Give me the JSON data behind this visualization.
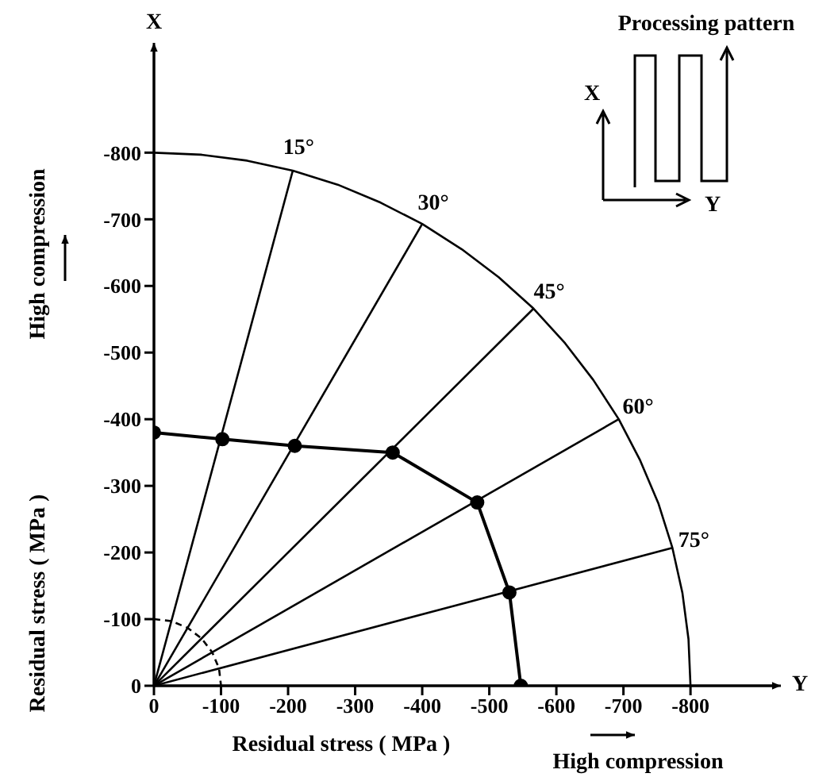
{
  "chart_data": {
    "type": "line",
    "xlabel": "Residual stress ( MPa )",
    "ylabel": "Residual stress ( MPa )",
    "xlim": [
      0,
      -930
    ],
    "ylim": [
      0,
      -960
    ],
    "xticks": [
      0,
      -100,
      -200,
      -300,
      -400,
      -500,
      -600,
      -700,
      -800
    ],
    "yticks": [
      0,
      -100,
      -200,
      -300,
      -400,
      -500,
      -600,
      -700,
      -800
    ],
    "series": [
      {
        "color": "#000000",
        "marker": "none",
        "line_style": "solid",
        "x": [
          0,
          -207
        ],
        "values": [
          0,
          -773
        ]
      },
      {
        "color": "#000000",
        "marker": "none",
        "line_style": "solid",
        "x": [
          0,
          -400
        ],
        "values": [
          0,
          -693
        ]
      },
      {
        "color": "#000000",
        "marker": "none",
        "line_style": "solid",
        "x": [
          0,
          -566
        ],
        "values": [
          0,
          -566
        ]
      },
      {
        "color": "#000000",
        "marker": "none",
        "line_style": "solid",
        "x": [
          0,
          -693
        ],
        "values": [
          0,
          -400
        ]
      },
      {
        "color": "#000000",
        "marker": "none",
        "line_style": "solid",
        "x": [
          0,
          -773
        ],
        "values": [
          0,
          -207
        ]
      },
      {
        "color": "#000000",
        "marker": "none",
        "line_style": "solid",
        "x": [
          0,
          -70,
          -139,
          -207,
          -274,
          -338,
          -400,
          -459,
          -514,
          -566,
          -613,
          -655,
          -693,
          -725,
          -752,
          -773,
          -788,
          -797,
          -800
        ],
        "values": [
          -800,
          -797,
          -788,
          -773,
          -752,
          -725,
          -693,
          -655,
          -613,
          -566,
          -514,
          -459,
          -400,
          -338,
          -274,
          -207,
          -139,
          -70,
          0
        ]
      },
      {
        "color": "#000000",
        "marker": "none",
        "line_style": "dashed",
        "x": [
          0,
          -26,
          -50,
          -71,
          -87,
          -97,
          -100
        ],
        "values": [
          -100,
          -97,
          -87,
          -71,
          -50,
          -26,
          0
        ]
      },
      {
        "color": "#000000",
        "marker": "circle",
        "line_style": "solid",
        "x": [
          0,
          -102,
          -210,
          -356,
          -482,
          -530,
          -547
        ],
        "values": [
          -380,
          -370,
          -360,
          -350,
          -275,
          -140,
          0
        ]
      }
    ],
    "annotations": [
      {
        "text": "X",
        "x": 0,
        "y": -960
      },
      {
        "text": "Y",
        "x": -930,
        "y": 0
      },
      {
        "text": "15°",
        "x": -207,
        "y": -773
      },
      {
        "text": "30°",
        "x": -400,
        "y": -693
      },
      {
        "text": "45°",
        "x": -566,
        "y": -566
      },
      {
        "text": "60°",
        "x": -693,
        "y": -400
      },
      {
        "text": "75°",
        "x": -773,
        "y": -207
      },
      "High compression",
      "High compression",
      "Processing pattern",
      "X",
      "Y"
    ]
  }
}
